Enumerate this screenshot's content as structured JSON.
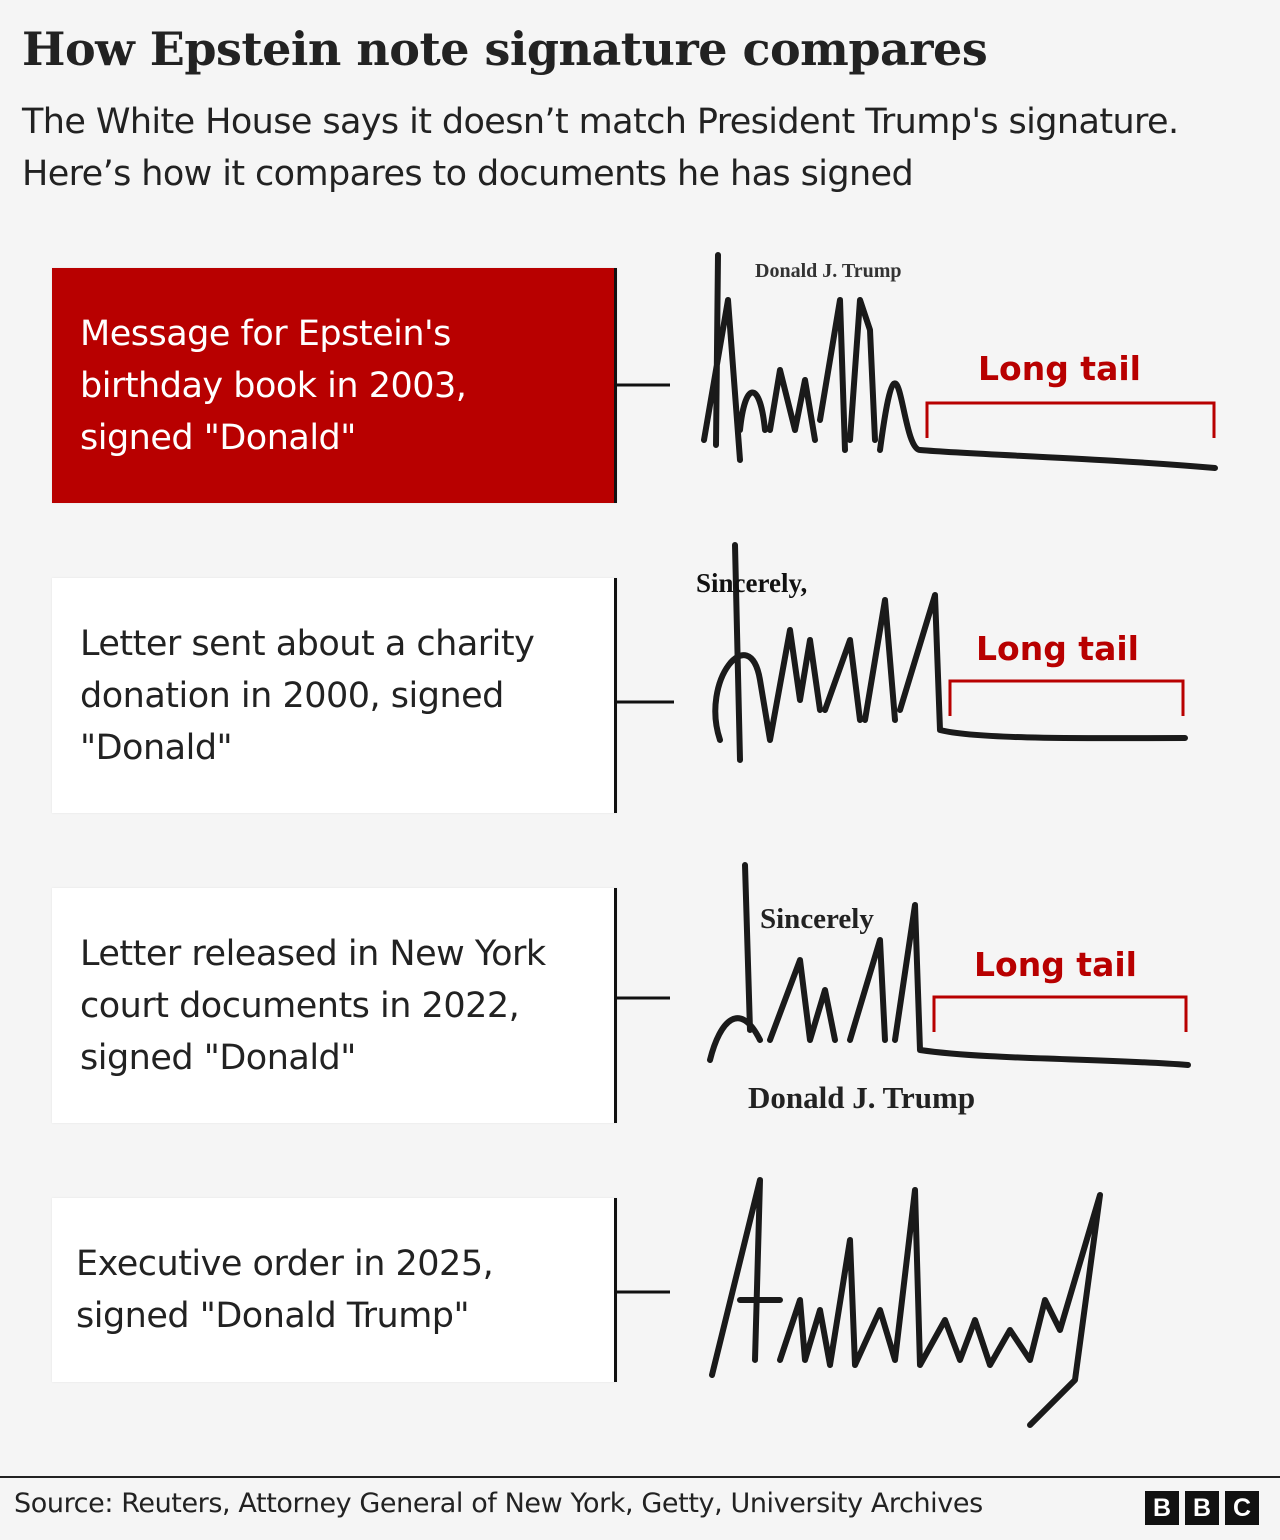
{
  "header": {
    "title": "How Epstein note signature compares",
    "subtitle": "The White House says it doesn’t match President Trump's signature. Here’s how it compares to documents he has signed"
  },
  "items": [
    {
      "label": "Message for Epstein's birthday book in 2003, signed \"Donald\"",
      "annotation": "Long tail",
      "printed": [
        "Donald J. Trump"
      ]
    },
    {
      "label": "Letter sent about a charity donation in 2000, signed \"Donald\"",
      "annotation": "Long tail",
      "printed": [
        "Sincerely,"
      ]
    },
    {
      "label": "Letter released in New York court documents in 2022, signed \"Donald\"",
      "annotation": "Long tail",
      "printed": [
        "Sincerely",
        "Donald J. Trump"
      ]
    },
    {
      "label": "Executive order in 2025, signed \"Donald Trump\""
    }
  ],
  "footer": {
    "source": "Source: Reuters, Attorney General of New York, Getty, University Archives",
    "logo": [
      "B",
      "B",
      "C"
    ]
  }
}
